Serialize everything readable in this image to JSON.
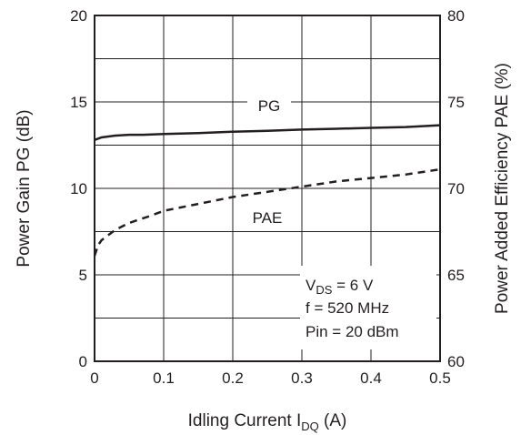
{
  "chart_data": {
    "type": "line",
    "xlabel": {
      "main": "Idling Current I",
      "sub": "DQ",
      "tail": " (A)"
    },
    "ylabel_left": "Power Gain PG (dB)",
    "ylabel_right": "Power Added Efficiency PAE (%)",
    "xlim": [
      0,
      0.5
    ],
    "ylim_left": [
      0,
      20
    ],
    "ylim_right": [
      60,
      80
    ],
    "x_ticks": [
      "0",
      "0.1",
      "0.2",
      "0.3",
      "0.4",
      "0.5"
    ],
    "y_left_ticks": [
      "0",
      "5",
      "10",
      "15",
      "20"
    ],
    "y_right_ticks": [
      "60",
      "65",
      "70",
      "75",
      "80"
    ],
    "grid": true,
    "series": [
      {
        "name": "PG",
        "axis": "left",
        "style": "solid",
        "x": [
          0,
          0.01,
          0.02,
          0.03,
          0.05,
          0.07,
          0.1,
          0.15,
          0.2,
          0.25,
          0.3,
          0.35,
          0.4,
          0.45,
          0.5
        ],
        "y": [
          12.8,
          12.95,
          13.0,
          13.05,
          13.1,
          13.1,
          13.15,
          13.2,
          13.28,
          13.33,
          13.4,
          13.45,
          13.5,
          13.55,
          13.65
        ]
      },
      {
        "name": "PAE",
        "axis": "right",
        "style": "dashed",
        "x": [
          0,
          0.005,
          0.01,
          0.02,
          0.03,
          0.05,
          0.08,
          0.1,
          0.15,
          0.2,
          0.25,
          0.3,
          0.35,
          0.4,
          0.45,
          0.5
        ],
        "y": [
          66.1,
          66.7,
          67.0,
          67.3,
          67.6,
          68.0,
          68.4,
          68.7,
          69.1,
          69.5,
          69.8,
          70.1,
          70.4,
          70.6,
          70.8,
          71.1
        ]
      }
    ],
    "series_labels": [
      "PG",
      "PAE"
    ],
    "conditions": {
      "vds": {
        "main": "V",
        "sub": "DS",
        "tail": " = 6 V"
      },
      "freq": "f = 520 MHz",
      "pin": "Pin = 20 dBm"
    }
  }
}
